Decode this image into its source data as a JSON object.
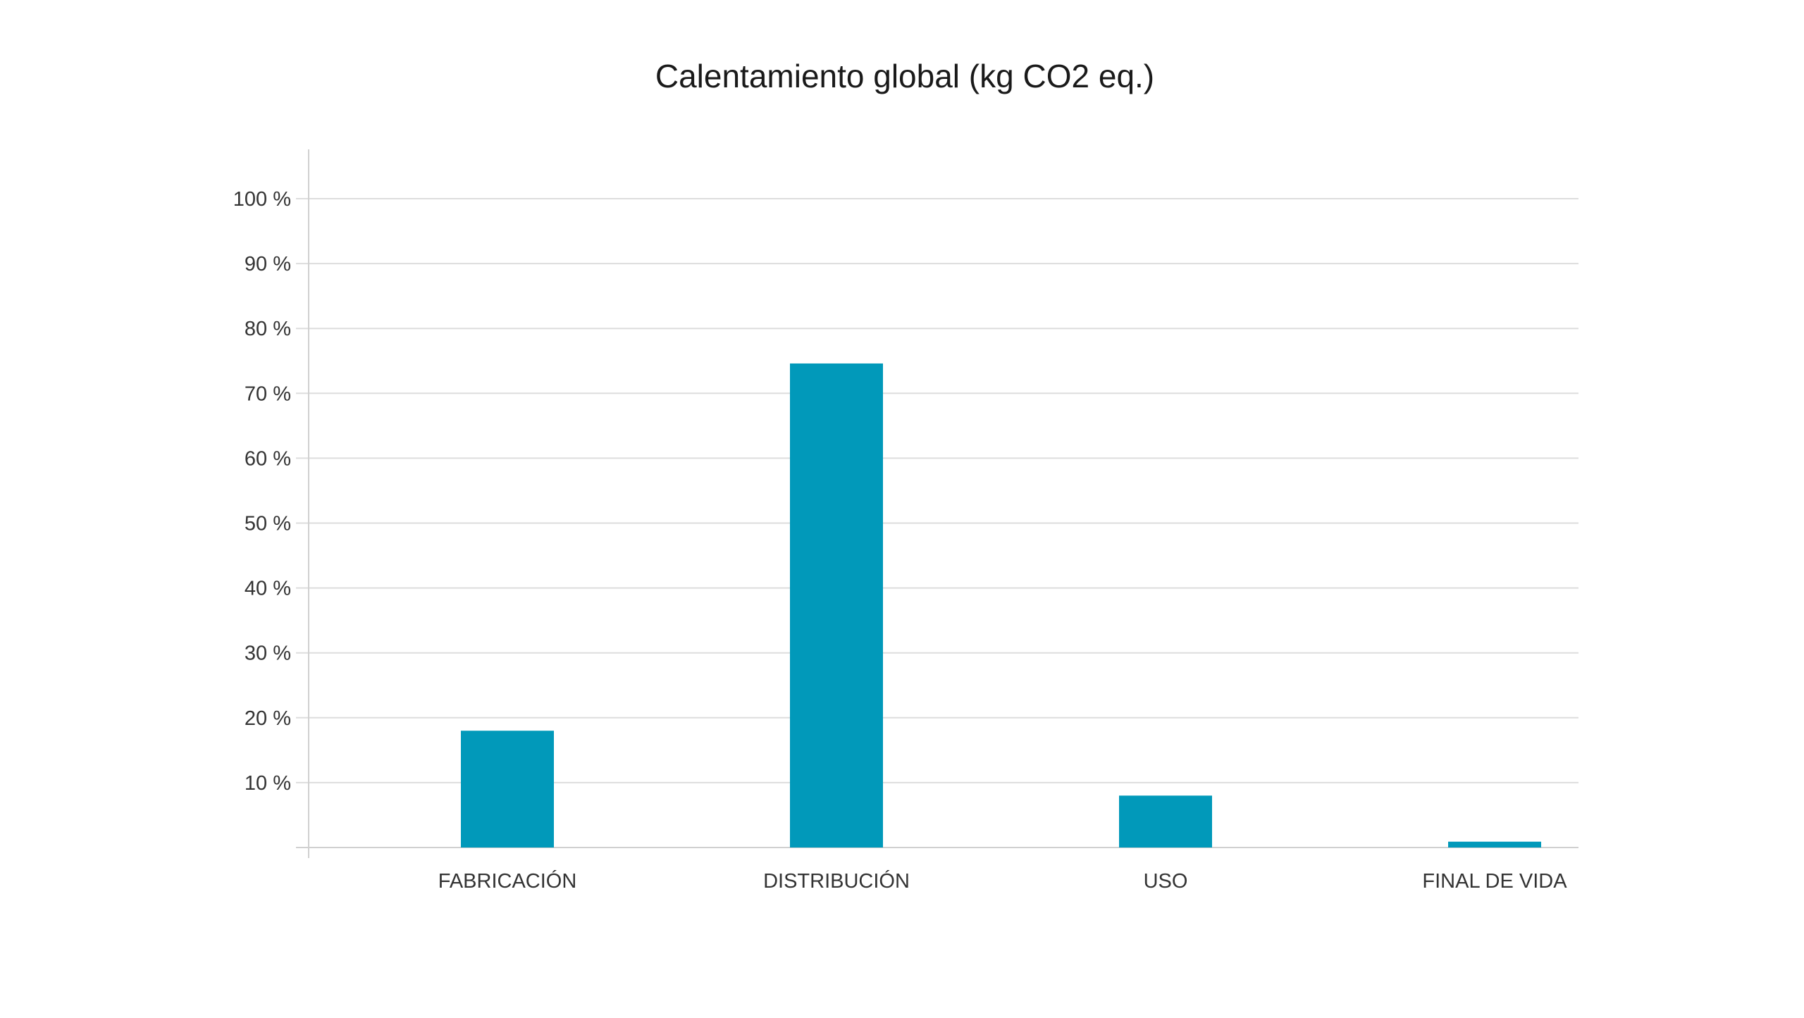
{
  "chart_data": {
    "type": "bar",
    "title": "Calentamiento global (kg CO2 eq.)",
    "xlabel": "",
    "ylabel": "",
    "categories": [
      "FABRICACIÓN",
      "DISTRIBUCIÓN",
      "USO",
      "FINAL DE VIDA"
    ],
    "values": [
      18,
      74.6,
      8,
      0.9
    ],
    "ylim": [
      0,
      100
    ],
    "yticks": [
      10,
      20,
      30,
      40,
      50,
      60,
      70,
      80,
      90,
      100
    ],
    "ytick_labels": [
      "10 %",
      "20 %",
      "30 %",
      "40 %",
      "50 %",
      "60 %",
      "70 %",
      "80 %",
      "90 %",
      "100 %"
    ],
    "grid": true,
    "legend": "none",
    "colors": {
      "bar": "#0199BA",
      "grid": "#DDDDDD",
      "axis": "#D0D0D0",
      "text": "#333333"
    }
  }
}
